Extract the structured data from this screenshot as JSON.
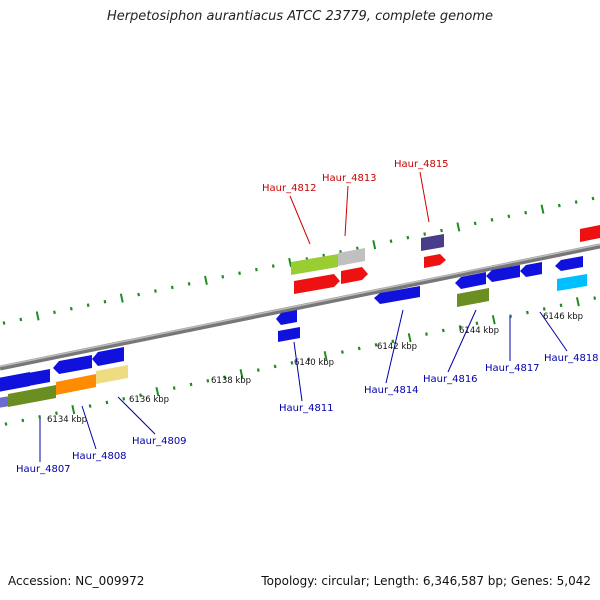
{
  "title": "Herpetosiphon aurantiacus ATCC 23779, complete genome",
  "footer": {
    "accession": "Accession: NC_009972",
    "summary": "Topology: circular; Length: 6,346,587 bp; Genes: 5,042"
  },
  "colors": {
    "backbone": "#8a8a8a",
    "tick": "#228b22",
    "forward_label": "#cc0000",
    "reverse_label": "#0000aa"
  },
  "ticks": [
    {
      "label": "6134 kbp"
    },
    {
      "label": "6136 kbp"
    },
    {
      "label": "6138 kbp"
    },
    {
      "label": "6140 kbp"
    },
    {
      "label": "6142 kbp"
    },
    {
      "label": "6144 kbp"
    },
    {
      "label": "6146 kbp"
    }
  ],
  "genes": [
    {
      "name": "Haur_4807",
      "strand": "reverse"
    },
    {
      "name": "Haur_4808",
      "strand": "reverse"
    },
    {
      "name": "Haur_4809",
      "strand": "reverse"
    },
    {
      "name": "Haur_4811",
      "strand": "reverse"
    },
    {
      "name": "Haur_4812",
      "strand": "forward"
    },
    {
      "name": "Haur_4813",
      "strand": "forward"
    },
    {
      "name": "Haur_4814",
      "strand": "reverse"
    },
    {
      "name": "Haur_4815",
      "strand": "forward"
    },
    {
      "name": "Haur_4816",
      "strand": "reverse"
    },
    {
      "name": "Haur_4817",
      "strand": "reverse"
    },
    {
      "name": "Haur_4818",
      "strand": "reverse"
    }
  ]
}
